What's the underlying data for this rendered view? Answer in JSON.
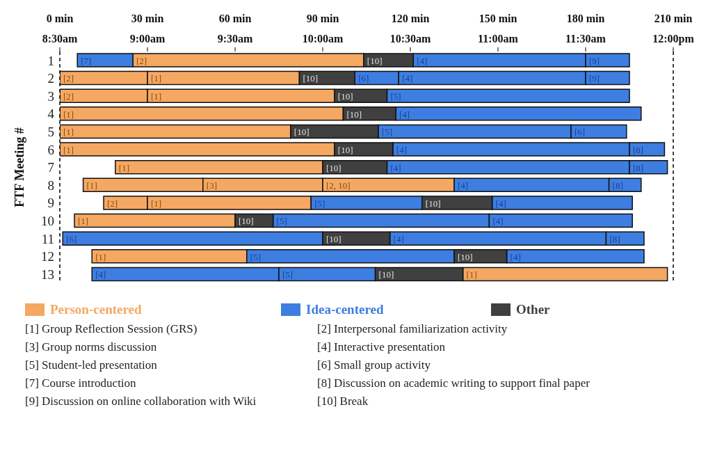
{
  "chart_data": {
    "type": "bar",
    "orientation": "horizontal",
    "ylabel": "FTF Meeting #",
    "categories": [
      "1",
      "2",
      "3",
      "4",
      "5",
      "6",
      "7",
      "8",
      "9",
      "10",
      "11",
      "12",
      "13"
    ],
    "xlim": [
      0,
      210
    ],
    "xticks": [
      {
        "value": 0,
        "label": "0 min"
      },
      {
        "value": 30,
        "label": "30 min"
      },
      {
        "value": 60,
        "label": "60 min"
      },
      {
        "value": 90,
        "label": "90 min"
      },
      {
        "value": 120,
        "label": "120 min"
      },
      {
        "value": 150,
        "label": "150 min"
      },
      {
        "value": 180,
        "label": "180 min"
      },
      {
        "value": 210,
        "label": "210 min"
      }
    ],
    "x2lim": [
      8.5,
      12
    ],
    "x2ticks": [
      {
        "value": 8.5,
        "label": "8:30am"
      },
      {
        "value": 9,
        "label": "9:00am"
      },
      {
        "value": 9.5,
        "label": "9:30am"
      },
      {
        "value": 10,
        "label": "10:00am"
      },
      {
        "value": 10.5,
        "label": "10:30am"
      },
      {
        "value": 11,
        "label": "11:00am"
      },
      {
        "value": 11.5,
        "label": "11:30am"
      },
      {
        "value": 12,
        "label": "12:00pm"
      }
    ],
    "series": [
      {
        "name": "Person-centered",
        "color": "#f4a862",
        "base": [
          25,
          0,
          0,
          0,
          0,
          0,
          19,
          8,
          15,
          5,
          null,
          11,
          138
        ],
        "values": [
          79,
          30,
          30,
          97,
          79,
          94,
          71,
          41,
          15,
          55,
          null,
          53,
          70
        ]
      },
      {
        "color": "#f4a862",
        "base": [
          null,
          30,
          30,
          null,
          null,
          null,
          null,
          49,
          30,
          null,
          null,
          null,
          null
        ],
        "values": [
          null,
          52,
          64,
          null,
          null,
          null,
          null,
          41,
          56,
          null,
          null,
          null,
          null
        ]
      },
      {
        "color": "#f4a862",
        "base": [
          null,
          null,
          null,
          null,
          null,
          null,
          null,
          90,
          null,
          null,
          null,
          null,
          null
        ],
        "values": [
          null,
          null,
          null,
          null,
          null,
          null,
          null,
          45,
          null,
          null,
          null,
          null,
          null
        ]
      },
      {
        "name": "Idea-centered",
        "color": "#3d7ee0",
        "base": [
          6,
          101,
          112,
          115,
          109,
          114,
          112,
          135,
          86,
          73,
          1,
          64,
          11
        ],
        "values": [
          19,
          15,
          83,
          84,
          66,
          81,
          83,
          53,
          38,
          74,
          89,
          71,
          64
        ]
      },
      {
        "color": "#3d7ee0",
        "base": [
          121,
          116,
          null,
          null,
          175,
          195,
          195,
          188,
          148,
          147,
          113,
          153,
          75
        ],
        "values": [
          59,
          64,
          null,
          null,
          19,
          12,
          13,
          11,
          48,
          49,
          74,
          47,
          33
        ]
      },
      {
        "color": "#3d7ee0",
        "base": [
          180,
          180,
          null,
          null,
          null,
          null,
          null,
          null,
          null,
          null,
          187,
          null,
          null
        ],
        "values": [
          15,
          15,
          null,
          null,
          null,
          null,
          null,
          null,
          null,
          null,
          13,
          null,
          null
        ]
      },
      {
        "name": "Other",
        "color": "#404040",
        "base": [
          104,
          82,
          94,
          97,
          79,
          94,
          90,
          null,
          124,
          60,
          90,
          135,
          108
        ],
        "values": [
          17,
          19,
          18,
          18,
          30,
          20,
          22,
          null,
          24,
          13,
          23,
          18,
          30
        ]
      }
    ],
    "ref_lines": [
      {
        "axis": "x",
        "value": 0,
        "label": null,
        "color": "#000000",
        "line_style": "dashed"
      },
      {
        "axis": "x",
        "value": 210,
        "label": null,
        "color": "#000000",
        "line_style": "dashed"
      }
    ],
    "legend": "bottom",
    "annotations": [
      {
        "text": "[7]",
        "x": 6,
        "y": "1"
      },
      {
        "text": "[2]",
        "x": 25,
        "y": "1"
      },
      {
        "text": "[10]",
        "x": 104,
        "y": "1"
      },
      {
        "text": "[4]",
        "x": 121,
        "y": "1"
      },
      {
        "text": "[9]",
        "x": 180,
        "y": "1"
      },
      {
        "text": "[2]",
        "x": 0,
        "y": "2"
      },
      {
        "text": "[1]",
        "x": 30,
        "y": "2"
      },
      {
        "text": "[10]",
        "x": 82,
        "y": "2"
      },
      {
        "text": "[6]",
        "x": 101,
        "y": "2"
      },
      {
        "text": "[4]",
        "x": 116,
        "y": "2"
      },
      {
        "text": "[9]",
        "x": 180,
        "y": "2"
      },
      {
        "text": "[2]",
        "x": 0,
        "y": "3"
      },
      {
        "text": "[1]",
        "x": 30,
        "y": "3"
      },
      {
        "text": "[10]",
        "x": 94,
        "y": "3"
      },
      {
        "text": "[5]",
        "x": 112,
        "y": "3"
      },
      {
        "text": "[1]",
        "x": 0,
        "y": "4"
      },
      {
        "text": "[10]",
        "x": 97,
        "y": "4"
      },
      {
        "text": "[4]",
        "x": 115,
        "y": "4"
      },
      {
        "text": "[1]",
        "x": 0,
        "y": "5"
      },
      {
        "text": "[10]",
        "x": 79,
        "y": "5"
      },
      {
        "text": "[5]",
        "x": 109,
        "y": "5"
      },
      {
        "text": "[6]",
        "x": 175,
        "y": "5"
      },
      {
        "text": "[1]",
        "x": 0,
        "y": "6"
      },
      {
        "text": "[10]",
        "x": 94,
        "y": "6"
      },
      {
        "text": "[4]",
        "x": 114,
        "y": "6"
      },
      {
        "text": "[8]",
        "x": 195,
        "y": "6"
      },
      {
        "text": "[1]",
        "x": 19,
        "y": "7"
      },
      {
        "text": "[10]",
        "x": 90,
        "y": "7"
      },
      {
        "text": "[4]",
        "x": 112,
        "y": "7"
      },
      {
        "text": "[8]",
        "x": 195,
        "y": "7"
      },
      {
        "text": "[1]",
        "x": 8,
        "y": "8"
      },
      {
        "text": "[3]",
        "x": 49,
        "y": "8"
      },
      {
        "text": "[2, 10]",
        "x": 90,
        "y": "8"
      },
      {
        "text": "[4]",
        "x": 135,
        "y": "8"
      },
      {
        "text": "[8]",
        "x": 188,
        "y": "8"
      },
      {
        "text": "[2]",
        "x": 15,
        "y": "9"
      },
      {
        "text": "[1]",
        "x": 30,
        "y": "9"
      },
      {
        "text": "[5]",
        "x": 86,
        "y": "9"
      },
      {
        "text": "[10]",
        "x": 124,
        "y": "9"
      },
      {
        "text": "[4]",
        "x": 148,
        "y": "9"
      },
      {
        "text": "[1]",
        "x": 5,
        "y": "10"
      },
      {
        "text": "[10]",
        "x": 60,
        "y": "10"
      },
      {
        "text": "[5]",
        "x": 73,
        "y": "10"
      },
      {
        "text": "[4]",
        "x": 147,
        "y": "10"
      },
      {
        "text": "[6]",
        "x": 1,
        "y": "11"
      },
      {
        "text": "[10]",
        "x": 90,
        "y": "11"
      },
      {
        "text": "[4]",
        "x": 113,
        "y": "11"
      },
      {
        "text": "[8]",
        "x": 187,
        "y": "11"
      },
      {
        "text": "[1]",
        "x": 11,
        "y": "12"
      },
      {
        "text": "[5]",
        "x": 64,
        "y": "12"
      },
      {
        "text": "[10]",
        "x": 135,
        "y": "12"
      },
      {
        "text": "[4]",
        "x": 153,
        "y": "12"
      },
      {
        "text": "[4]",
        "x": 11,
        "y": "13"
      },
      {
        "text": "[5]",
        "x": 75,
        "y": "13"
      },
      {
        "text": "[10]",
        "x": 108,
        "y": "13"
      },
      {
        "text": "[1]",
        "x": 138,
        "y": "13"
      },
      "[1] Group Reflection Session (GRS)",
      "[2] Interpersonal familiarization activity",
      "[3] Group norms discussion",
      "[4] Interactive presentation",
      "[5] Student-led presentation",
      "[6] Small group activity",
      "[7] Course introduction",
      "[8] Discussion on academic writing to support final paper",
      "[9] Discussion on online collaboration with Wiki",
      "[10] Break"
    ]
  }
}
